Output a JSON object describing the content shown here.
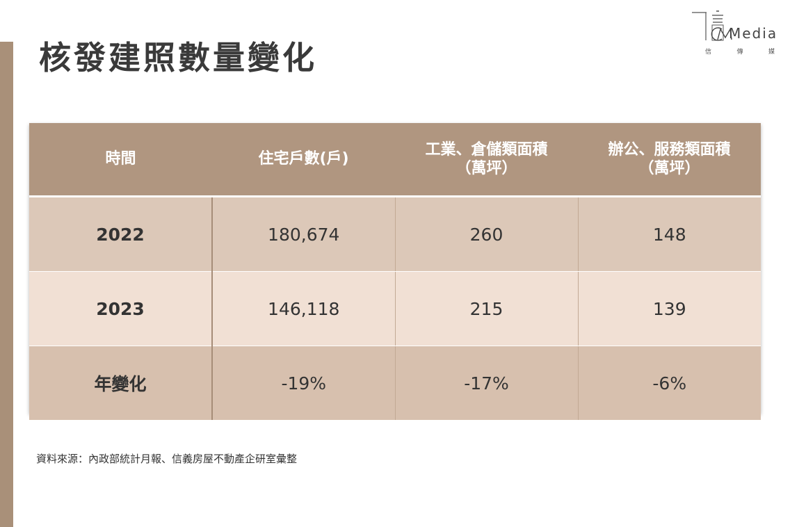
{
  "logo": {
    "wordmark": "Media",
    "caption": [
      "信",
      "傳",
      "媒"
    ]
  },
  "title": "核發建照數量變化",
  "table": {
    "headers": [
      {
        "line1": "時間",
        "line2": ""
      },
      {
        "line1": "住宅戶數(戶)",
        "line2": ""
      },
      {
        "line1": "工業、倉儲類面積",
        "line2": "（萬坪）"
      },
      {
        "line1": "辦公、服務類面積",
        "line2": "（萬坪）"
      }
    ],
    "rows": [
      [
        "2022",
        "180,674",
        "260",
        "148"
      ],
      [
        "2023",
        "146,118",
        "215",
        "139"
      ],
      [
        "年變化",
        "-19%",
        "-17%",
        "-6%"
      ]
    ]
  },
  "source": "資料來源：內政部統計月報、信義房屋不動產企研室彙整",
  "colors": {
    "header_bg": "#b09680",
    "row_2022": "#dcc8b8",
    "row_2023": "#f1e0d4",
    "row_change": "#d7c0ae",
    "side_bar": "#a99079"
  }
}
